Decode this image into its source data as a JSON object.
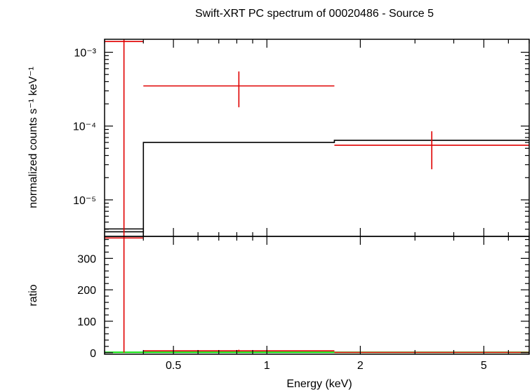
{
  "chart_data": {
    "type": "line",
    "title": "Swift-XRT PC spectrum of 00020486 - Source 5",
    "xlabel": "Energy (keV)",
    "x_scale": "log",
    "xlim": [
      0.3,
      7.0
    ],
    "x_ticks": [
      0.5,
      1,
      2,
      5
    ],
    "x_tick_labels": [
      "0.5",
      "1",
      "2",
      "5"
    ],
    "panels": [
      {
        "id": "spectrum",
        "ylabel": "normalized counts s⁻¹ keV⁻¹",
        "y_scale": "log",
        "ylim": [
          3.2e-06,
          0.0015
        ],
        "y_ticks": [
          1e-05,
          0.0001,
          0.001
        ],
        "y_tick_labels": [
          "10⁻⁵",
          "10⁻⁴",
          "10⁻³"
        ],
        "data_points": [
          {
            "x_lo": 0.3,
            "x_hi": 0.4,
            "y": 0.0014,
            "y_lo": 3.2e-06,
            "y_hi": 0.0015,
            "color": "#e00000"
          },
          {
            "x_lo": 0.4,
            "x_hi": 1.65,
            "y": 0.00035,
            "y_lo": 0.00018,
            "y_hi": 0.00055,
            "color": "#e00000"
          },
          {
            "x_lo": 1.65,
            "x_hi": 7.0,
            "y": 5.5e-05,
            "y_lo": 2.6e-05,
            "y_hi": 8.5e-05,
            "color": "#e00000"
          }
        ],
        "model": {
          "color": "#000000",
          "steps": [
            {
              "x_lo": 0.3,
              "x_hi": 0.4,
              "y": 3.7e-06
            },
            {
              "x_lo": 0.4,
              "x_hi": 1.65,
              "y": 6e-05
            },
            {
              "x_lo": 1.65,
              "x_hi": 7.0,
              "y": 6.4e-05
            }
          ]
        }
      },
      {
        "id": "ratio",
        "ylabel": "ratio",
        "y_scale": "linear",
        "ylim": [
          -5,
          370
        ],
        "y_ticks": [
          0,
          100,
          200,
          300
        ],
        "y_tick_labels": [
          "0",
          "100",
          "200",
          "300"
        ],
        "data_points": [
          {
            "x_lo": 0.3,
            "x_hi": 0.4,
            "y": 365,
            "y_lo": 0,
            "y_hi": 370,
            "color": "#e00000"
          },
          {
            "x_lo": 0.4,
            "x_hi": 1.65,
            "y": 5.8,
            "y_lo": 3.0,
            "y_hi": 9.2,
            "color": "#e00000"
          },
          {
            "x_lo": 1.65,
            "x_hi": 7.0,
            "y": 0.86,
            "y_lo": 0.4,
            "y_hi": 1.3,
            "color": "#e00000"
          }
        ],
        "reference_line": {
          "y": 1,
          "color": "#00dd00"
        }
      }
    ]
  }
}
